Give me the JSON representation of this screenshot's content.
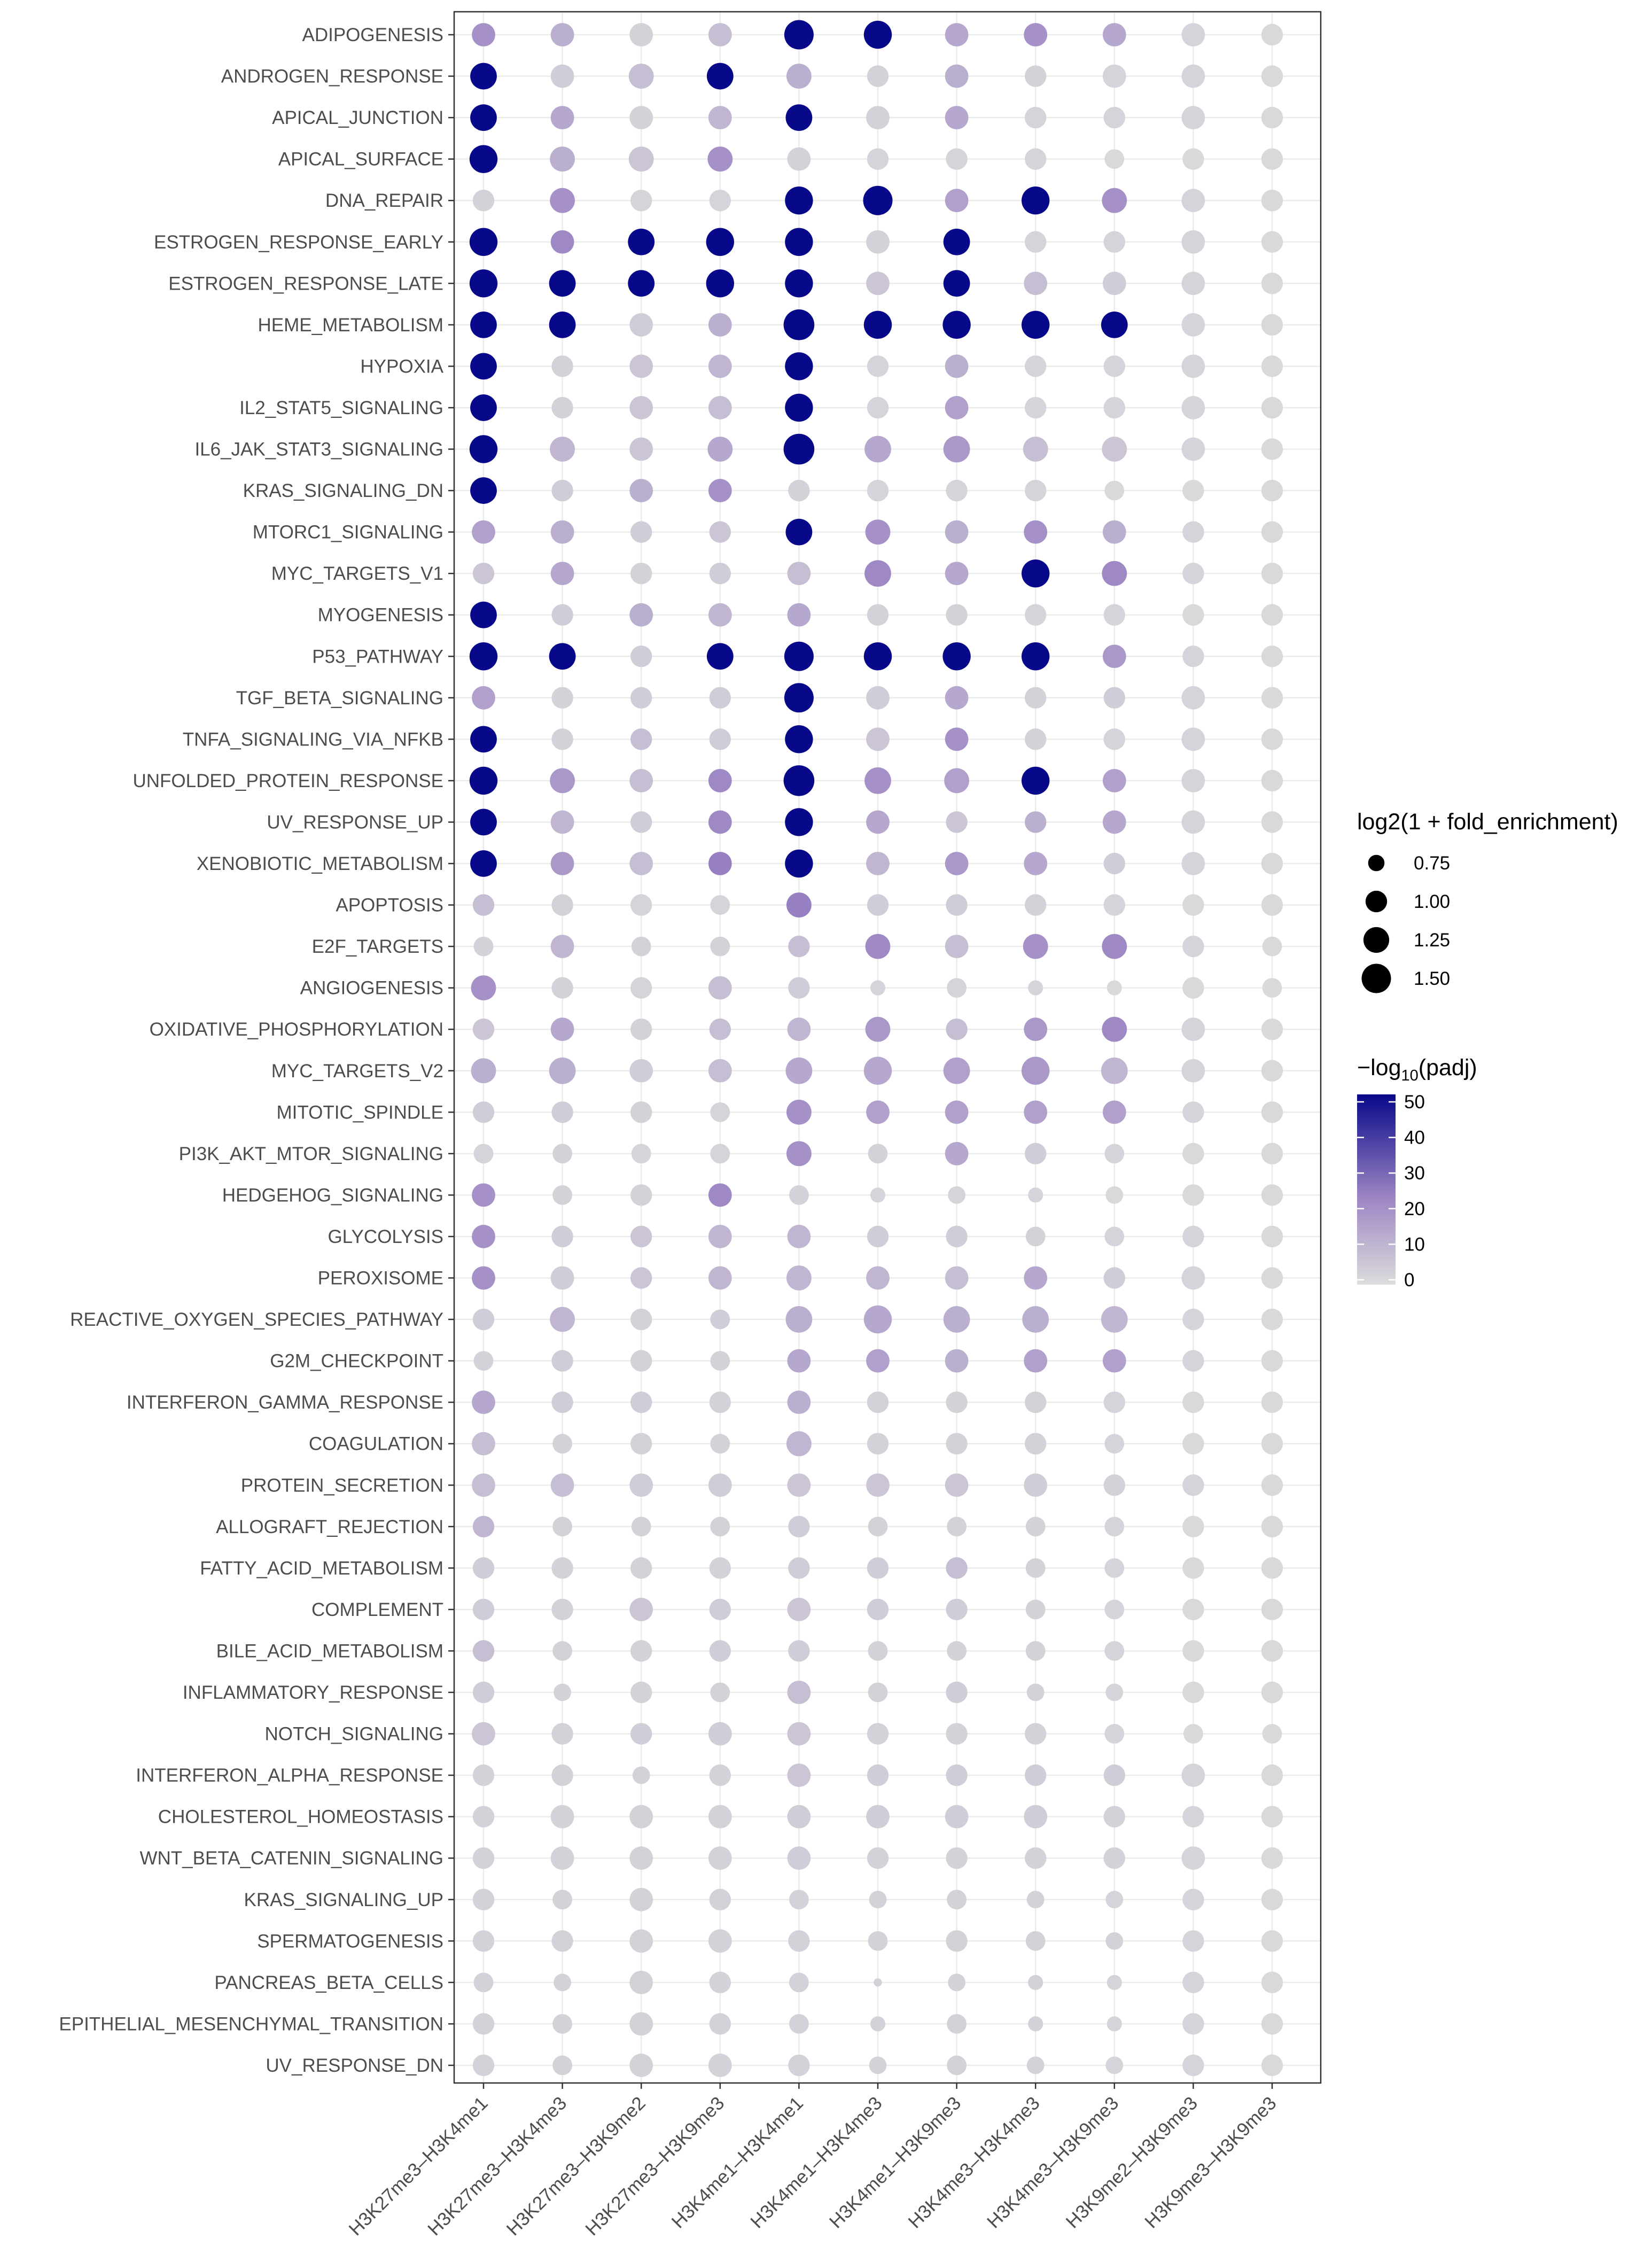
{
  "chart_data": {
    "type": "dot",
    "title": "",
    "xlabel": "",
    "ylabel": "",
    "categories_x": [
      "H3K27me3–H3K4me1",
      "H3K27me3–H3K4me3",
      "H3K27me3–H3K9me2",
      "H3K27me3–H3K9me3",
      "H3K4me1–H3K4me1",
      "H3K4me1–H3K4me3",
      "H3K4me1–H3K9me3",
      "H3K4me3–H3K4me3",
      "H3K4me3–H3K9me3",
      "H3K9me2–H3K9me3",
      "H3K9me3–H3K9me3"
    ],
    "categories_y": [
      "ADIPOGENESIS",
      "ANDROGEN_RESPONSE",
      "APICAL_JUNCTION",
      "APICAL_SURFACE",
      "DNA_REPAIR",
      "ESTROGEN_RESPONSE_EARLY",
      "ESTROGEN_RESPONSE_LATE",
      "HEME_METABOLISM",
      "HYPOXIA",
      "IL2_STAT5_SIGNALING",
      "IL6_JAK_STAT3_SIGNALING",
      "KRAS_SIGNALING_DN",
      "MTORC1_SIGNALING",
      "MYC_TARGETS_V1",
      "MYOGENESIS",
      "P53_PATHWAY",
      "TGF_BETA_SIGNALING",
      "TNFA_SIGNALING_VIA_NFKB",
      "UNFOLDED_PROTEIN_RESPONSE",
      "UV_RESPONSE_UP",
      "XENOBIOTIC_METABOLISM",
      "APOPTOSIS",
      "E2F_TARGETS",
      "ANGIOGENESIS",
      "OXIDATIVE_PHOSPHORYLATION",
      "MYC_TARGETS_V2",
      "MITOTIC_SPINDLE",
      "PI3K_AKT_MTOR_SIGNALING",
      "HEDGEHOG_SIGNALING",
      "GLYCOLYSIS",
      "PEROXISOME",
      "REACTIVE_OXYGEN_SPECIES_PATHWAY",
      "G2M_CHECKPOINT",
      "INTERFERON_GAMMA_RESPONSE",
      "COAGULATION",
      "PROTEIN_SECRETION",
      "ALLOGRAFT_REJECTION",
      "FATTY_ACID_METABOLISM",
      "COMPLEMENT",
      "BILE_ACID_METABOLISM",
      "INFLAMMATORY_RESPONSE",
      "NOTCH_SIGNALING",
      "INTERFERON_ALPHA_RESPONSE",
      "CHOLESTEROL_HOMEOSTASIS",
      "WNT_BETA_CATENIN_SIGNALING",
      "KRAS_SIGNALING_UP",
      "SPERMATOGENESIS",
      "PANCREAS_BETA_CELLS",
      "EPITHELIAL_MESENCHYMAL_TRANSITION",
      "UV_RESPONSE_DN"
    ],
    "size_metric": "log2(1 + fold_enrichment)",
    "color_metric": "-log10(padj)",
    "size_legend": {
      "title": "log2(1 + fold_enrichment)",
      "breaks": [
        0.75,
        1.0,
        1.25,
        1.5
      ],
      "labels": [
        "0.75",
        "1.00",
        "1.25",
        "1.50"
      ],
      "range": [
        0.45,
        1.62
      ]
    },
    "color_legend": {
      "title_main": "−log",
      "title_sub": "10",
      "title_tail": "(padj)",
      "breaks": [
        0,
        10,
        20,
        30,
        40,
        50
      ],
      "labels": [
        "0",
        "10",
        "20",
        "30",
        "40",
        "50"
      ],
      "range": [
        0,
        50
      ],
      "low_color": "#dcdcdc",
      "mid_color": "#9e87c4",
      "high_color": "#08088a"
    },
    "padj": [
      [
        20,
        12,
        3,
        8,
        50,
        50,
        14,
        20,
        14,
        2,
        1
      ],
      [
        50,
        4,
        8,
        50,
        12,
        3,
        12,
        3,
        2,
        2,
        1
      ],
      [
        50,
        14,
        3,
        10,
        50,
        3,
        14,
        2,
        2,
        2,
        1
      ],
      [
        50,
        12,
        6,
        20,
        3,
        2,
        2,
        2,
        1,
        1,
        1
      ],
      [
        3,
        20,
        2,
        2,
        50,
        50,
        16,
        50,
        20,
        2,
        1
      ],
      [
        50,
        22,
        50,
        50,
        50,
        3,
        50,
        2,
        2,
        2,
        1
      ],
      [
        50,
        50,
        50,
        50,
        50,
        6,
        50,
        8,
        4,
        2,
        1
      ],
      [
        50,
        50,
        4,
        12,
        50,
        50,
        50,
        50,
        50,
        2,
        1
      ],
      [
        50,
        3,
        6,
        10,
        50,
        2,
        12,
        2,
        2,
        2,
        1
      ],
      [
        50,
        3,
        6,
        8,
        50,
        2,
        16,
        2,
        2,
        2,
        1
      ],
      [
        50,
        10,
        6,
        14,
        50,
        14,
        18,
        8,
        6,
        2,
        1
      ],
      [
        50,
        4,
        12,
        20,
        3,
        2,
        2,
        2,
        1,
        1,
        1
      ],
      [
        16,
        12,
        4,
        6,
        50,
        20,
        12,
        20,
        12,
        2,
        1
      ],
      [
        6,
        14,
        3,
        4,
        8,
        22,
        14,
        50,
        22,
        2,
        1
      ],
      [
        50,
        4,
        12,
        10,
        14,
        3,
        3,
        2,
        2,
        1,
        1
      ],
      [
        50,
        50,
        4,
        50,
        50,
        50,
        50,
        50,
        18,
        2,
        1
      ],
      [
        16,
        3,
        4,
        4,
        50,
        4,
        14,
        3,
        4,
        2,
        1
      ],
      [
        50,
        3,
        8,
        4,
        50,
        6,
        20,
        3,
        2,
        2,
        1
      ],
      [
        50,
        18,
        8,
        22,
        50,
        20,
        16,
        50,
        16,
        2,
        1
      ],
      [
        50,
        10,
        4,
        22,
        50,
        14,
        6,
        12,
        14,
        2,
        1
      ],
      [
        50,
        18,
        8,
        24,
        50,
        10,
        18,
        14,
        4,
        2,
        1
      ],
      [
        8,
        3,
        2,
        2,
        24,
        4,
        4,
        3,
        2,
        1,
        1
      ],
      [
        3,
        10,
        3,
        3,
        8,
        22,
        8,
        20,
        22,
        2,
        1
      ],
      [
        20,
        3,
        2,
        8,
        4,
        2,
        2,
        2,
        1,
        1,
        1
      ],
      [
        6,
        14,
        3,
        8,
        10,
        18,
        8,
        18,
        22,
        2,
        1
      ],
      [
        12,
        12,
        4,
        8,
        14,
        14,
        16,
        18,
        10,
        2,
        1
      ],
      [
        4,
        4,
        3,
        2,
        20,
        16,
        16,
        16,
        16,
        2,
        1
      ],
      [
        2,
        3,
        2,
        2,
        20,
        3,
        14,
        4,
        2,
        1,
        1
      ],
      [
        20,
        3,
        3,
        22,
        3,
        2,
        2,
        2,
        1,
        1,
        1
      ],
      [
        20,
        4,
        6,
        10,
        10,
        4,
        4,
        3,
        2,
        2,
        1
      ],
      [
        20,
        4,
        6,
        10,
        10,
        10,
        8,
        14,
        4,
        2,
        1
      ],
      [
        4,
        10,
        3,
        4,
        12,
        14,
        12,
        12,
        10,
        2,
        1
      ],
      [
        3,
        4,
        3,
        3,
        14,
        16,
        12,
        16,
        16,
        2,
        1
      ],
      [
        14,
        4,
        4,
        3,
        12,
        3,
        3,
        3,
        2,
        1,
        1
      ],
      [
        8,
        3,
        3,
        3,
        10,
        3,
        3,
        3,
        2,
        1,
        1
      ],
      [
        8,
        8,
        4,
        4,
        6,
        6,
        6,
        4,
        3,
        2,
        1
      ],
      [
        10,
        3,
        3,
        3,
        4,
        3,
        3,
        3,
        2,
        1,
        1
      ],
      [
        4,
        3,
        3,
        3,
        4,
        4,
        8,
        3,
        2,
        1,
        1
      ],
      [
        4,
        3,
        6,
        4,
        6,
        4,
        4,
        3,
        2,
        1,
        1
      ],
      [
        8,
        3,
        3,
        4,
        4,
        3,
        3,
        3,
        2,
        1,
        1
      ],
      [
        4,
        3,
        3,
        3,
        8,
        3,
        4,
        3,
        2,
        1,
        1
      ],
      [
        6,
        3,
        4,
        4,
        6,
        3,
        3,
        3,
        2,
        1,
        1
      ],
      [
        3,
        3,
        3,
        3,
        6,
        4,
        4,
        4,
        4,
        2,
        1
      ],
      [
        3,
        3,
        3,
        3,
        4,
        4,
        4,
        4,
        3,
        2,
        1
      ],
      [
        3,
        3,
        3,
        3,
        4,
        3,
        3,
        3,
        3,
        2,
        1
      ],
      [
        3,
        3,
        3,
        3,
        3,
        3,
        3,
        3,
        2,
        2,
        1
      ],
      [
        3,
        3,
        3,
        3,
        3,
        3,
        3,
        3,
        3,
        2,
        1
      ],
      [
        3,
        3,
        3,
        3,
        3,
        3,
        3,
        3,
        2,
        2,
        1
      ],
      [
        3,
        3,
        3,
        3,
        3,
        3,
        3,
        3,
        2,
        2,
        1
      ],
      [
        3,
        3,
        3,
        3,
        3,
        3,
        3,
        3,
        2,
        2,
        1
      ]
    ],
    "fold": [
      [
        1.1,
        1.1,
        1.1,
        1.1,
        1.5,
        1.4,
        1.1,
        1.1,
        1.1,
        1.1,
        1.0
      ],
      [
        1.3,
        1.1,
        1.2,
        1.3,
        1.2,
        1.0,
        1.1,
        1.0,
        1.1,
        1.1,
        1.0
      ],
      [
        1.3,
        1.1,
        1.1,
        1.1,
        1.3,
        1.1,
        1.1,
        1.0,
        1.0,
        1.1,
        1.0
      ],
      [
        1.4,
        1.2,
        1.2,
        1.2,
        1.1,
        1.0,
        1.0,
        1.0,
        0.9,
        1.0,
        1.0
      ],
      [
        1.0,
        1.2,
        1.0,
        1.0,
        1.4,
        1.5,
        1.1,
        1.4,
        1.2,
        1.1,
        1.0
      ],
      [
        1.4,
        1.1,
        1.3,
        1.4,
        1.4,
        1.1,
        1.3,
        1.0,
        1.0,
        1.1,
        1.0
      ],
      [
        1.4,
        1.3,
        1.3,
        1.4,
        1.4,
        1.1,
        1.3,
        1.1,
        1.1,
        1.1,
        1.0
      ],
      [
        1.3,
        1.3,
        1.1,
        1.1,
        1.6,
        1.4,
        1.4,
        1.4,
        1.3,
        1.1,
        1.0
      ],
      [
        1.3,
        1.0,
        1.1,
        1.1,
        1.4,
        1.0,
        1.1,
        1.0,
        1.0,
        1.1,
        1.0
      ],
      [
        1.3,
        1.0,
        1.1,
        1.1,
        1.4,
        1.0,
        1.1,
        1.0,
        1.0,
        1.1,
        1.0
      ],
      [
        1.4,
        1.2,
        1.1,
        1.2,
        1.6,
        1.3,
        1.3,
        1.2,
        1.2,
        1.1,
        1.0
      ],
      [
        1.3,
        1.0,
        1.1,
        1.1,
        1.0,
        1.0,
        1.0,
        1.0,
        0.9,
        1.0,
        1.0
      ],
      [
        1.1,
        1.1,
        1.0,
        1.0,
        1.3,
        1.2,
        1.1,
        1.1,
        1.1,
        1.0,
        1.0
      ],
      [
        1.0,
        1.1,
        1.0,
        1.0,
        1.1,
        1.3,
        1.1,
        1.4,
        1.2,
        1.0,
        1.0
      ],
      [
        1.3,
        1.0,
        1.1,
        1.1,
        1.1,
        1.0,
        1.0,
        1.0,
        1.0,
        1.0,
        1.0
      ],
      [
        1.4,
        1.3,
        1.0,
        1.3,
        1.5,
        1.4,
        1.4,
        1.4,
        1.1,
        1.0,
        1.0
      ],
      [
        1.1,
        1.0,
        1.0,
        1.0,
        1.5,
        1.1,
        1.1,
        1.0,
        1.0,
        1.1,
        1.0
      ],
      [
        1.3,
        1.0,
        1.0,
        1.0,
        1.4,
        1.1,
        1.1,
        1.0,
        1.0,
        1.1,
        1.0
      ],
      [
        1.4,
        1.2,
        1.1,
        1.1,
        1.6,
        1.3,
        1.2,
        1.4,
        1.1,
        1.1,
        1.0
      ],
      [
        1.3,
        1.1,
        1.0,
        1.1,
        1.4,
        1.1,
        1.0,
        1.0,
        1.1,
        1.1,
        1.0
      ],
      [
        1.3,
        1.1,
        1.1,
        1.1,
        1.4,
        1.1,
        1.1,
        1.1,
        1.0,
        1.1,
        1.0
      ],
      [
        1.0,
        1.0,
        1.0,
        0.9,
        1.2,
        1.0,
        1.0,
        1.0,
        1.0,
        1.0,
        1.0
      ],
      [
        0.9,
        1.1,
        0.9,
        0.9,
        1.0,
        1.2,
        1.1,
        1.2,
        1.2,
        1.0,
        0.9
      ],
      [
        1.2,
        1.0,
        1.0,
        1.1,
        1.0,
        0.7,
        0.9,
        0.7,
        0.7,
        1.0,
        0.9
      ],
      [
        1.0,
        1.1,
        1.0,
        1.0,
        1.1,
        1.2,
        1.0,
        1.1,
        1.2,
        1.1,
        1.0
      ],
      [
        1.2,
        1.3,
        1.1,
        1.1,
        1.3,
        1.4,
        1.3,
        1.4,
        1.3,
        1.1,
        1.0
      ],
      [
        1.0,
        1.0,
        1.0,
        0.9,
        1.2,
        1.1,
        1.1,
        1.1,
        1.1,
        1.0,
        1.0
      ],
      [
        0.9,
        0.9,
        0.9,
        0.9,
        1.2,
        0.9,
        1.1,
        1.0,
        0.9,
        1.0,
        1.0
      ],
      [
        1.1,
        0.9,
        1.0,
        1.1,
        0.9,
        0.7,
        0.8,
        0.7,
        0.8,
        1.0,
        1.0
      ],
      [
        1.1,
        1.0,
        1.0,
        1.1,
        1.1,
        1.0,
        1.0,
        0.9,
        0.9,
        1.0,
        1.0
      ],
      [
        1.1,
        1.1,
        1.0,
        1.1,
        1.2,
        1.1,
        1.1,
        1.1,
        1.0,
        1.1,
        1.0
      ],
      [
        1.0,
        1.2,
        1.0,
        0.9,
        1.3,
        1.4,
        1.3,
        1.3,
        1.3,
        1.0,
        1.0
      ],
      [
        0.9,
        1.0,
        1.0,
        0.9,
        1.1,
        1.1,
        1.1,
        1.1,
        1.1,
        1.0,
        1.0
      ],
      [
        1.1,
        1.0,
        1.0,
        1.0,
        1.1,
        1.0,
        1.0,
        1.0,
        1.0,
        1.0,
        1.0
      ],
      [
        1.1,
        0.9,
        1.0,
        0.9,
        1.2,
        1.0,
        1.0,
        1.0,
        0.9,
        1.0,
        1.0
      ],
      [
        1.1,
        1.1,
        1.1,
        1.1,
        1.1,
        1.1,
        1.1,
        1.1,
        1.0,
        1.0,
        1.0
      ],
      [
        1.0,
        0.9,
        0.9,
        0.9,
        1.0,
        0.9,
        0.9,
        0.9,
        0.9,
        1.0,
        1.0
      ],
      [
        1.0,
        1.0,
        1.0,
        1.0,
        1.0,
        1.0,
        1.0,
        0.9,
        0.9,
        1.0,
        1.0
      ],
      [
        1.0,
        1.0,
        1.1,
        1.0,
        1.1,
        1.0,
        1.0,
        0.9,
        0.9,
        1.0,
        1.0
      ],
      [
        1.0,
        0.9,
        1.0,
        1.0,
        1.0,
        0.9,
        0.9,
        0.9,
        0.9,
        1.0,
        1.0
      ],
      [
        1.0,
        0.8,
        1.0,
        0.9,
        1.1,
        0.9,
        1.0,
        0.8,
        0.8,
        1.0,
        1.0
      ],
      [
        1.1,
        1.0,
        1.0,
        1.1,
        1.1,
        1.0,
        1.0,
        1.0,
        0.9,
        0.9,
        0.9
      ],
      [
        1.0,
        1.0,
        0.8,
        1.0,
        1.1,
        1.0,
        1.0,
        1.0,
        1.0,
        1.1,
        1.0
      ],
      [
        1.0,
        1.1,
        1.1,
        1.1,
        1.1,
        1.1,
        1.1,
        1.1,
        1.0,
        1.0,
        1.0
      ],
      [
        1.0,
        1.1,
        1.1,
        1.1,
        1.1,
        1.0,
        1.0,
        1.0,
        1.0,
        1.1,
        1.0
      ],
      [
        1.0,
        0.9,
        1.1,
        1.0,
        0.9,
        0.8,
        0.9,
        0.8,
        0.8,
        1.0,
        1.0
      ],
      [
        1.0,
        1.0,
        1.1,
        1.1,
        1.0,
        0.9,
        1.0,
        0.9,
        0.8,
        1.0,
        1.0
      ],
      [
        0.9,
        0.8,
        1.1,
        1.0,
        0.9,
        0.5,
        0.8,
        0.7,
        0.7,
        1.0,
        1.0
      ],
      [
        1.0,
        0.9,
        1.1,
        1.0,
        0.9,
        0.7,
        0.9,
        0.7,
        0.7,
        1.0,
        1.0
      ],
      [
        1.0,
        0.9,
        1.1,
        1.1,
        1.0,
        0.8,
        0.9,
        0.8,
        0.8,
        1.0,
        1.0
      ]
    ]
  }
}
